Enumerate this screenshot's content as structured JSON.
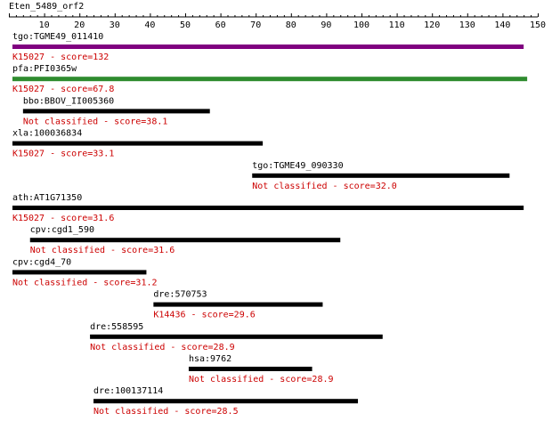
{
  "query_name": "Eten_5489_orf2",
  "axis": {
    "min": 0,
    "max": 150,
    "ticks": [
      10,
      20,
      30,
      40,
      50,
      60,
      70,
      80,
      90,
      100,
      110,
      120,
      130,
      140,
      150
    ],
    "minor_step": 2
  },
  "colors": {
    "label": "#000000",
    "score_text": "#cc0000",
    "axis": "#000000",
    "bar_default": "#000000"
  },
  "hits": [
    {
      "name": "tgo:TGME49_011410",
      "start": 1,
      "end": 146,
      "annotation": "K15027 - score=132",
      "bar_color": "#800080"
    },
    {
      "name": "pfa:PFI0365w",
      "start": 1,
      "end": 147,
      "annotation": "K15027 - score=67.8",
      "bar_color": "#2e8b2e"
    },
    {
      "name": "bbo:BBOV_II005360",
      "start": 4,
      "end": 57,
      "annotation": "Not classified - score=38.1",
      "bar_color": "#000000"
    },
    {
      "name": "xla:100036834",
      "start": 1,
      "end": 72,
      "annotation": "K15027 - score=33.1",
      "bar_color": "#000000"
    },
    {
      "name": "tgo:TGME49_090330",
      "start": 69,
      "end": 142,
      "annotation": "Not classified - score=32.0",
      "bar_color": "#000000"
    },
    {
      "name": "ath:AT1G71350",
      "start": 1,
      "end": 146,
      "annotation": "K15027 - score=31.6",
      "bar_color": "#000000"
    },
    {
      "name": "cpv:cgd1_590",
      "start": 6,
      "end": 94,
      "annotation": "Not classified - score=31.6",
      "bar_color": "#000000"
    },
    {
      "name": "cpv:cgd4_70",
      "start": 1,
      "end": 39,
      "annotation": "Not classified - score=31.2",
      "bar_color": "#000000"
    },
    {
      "name": "dre:570753",
      "start": 41,
      "end": 89,
      "annotation": "K14436 - score=29.6",
      "bar_color": "#000000"
    },
    {
      "name": "dre:558595",
      "start": 23,
      "end": 106,
      "annotation": "Not classified - score=28.9",
      "bar_color": "#000000"
    },
    {
      "name": "hsa:9762",
      "start": 51,
      "end": 86,
      "annotation": "Not classified - score=28.9",
      "bar_color": "#000000"
    },
    {
      "name": "dre:100137114",
      "start": 24,
      "end": 99,
      "annotation": "Not classified - score=28.5",
      "bar_color": "#000000"
    }
  ]
}
